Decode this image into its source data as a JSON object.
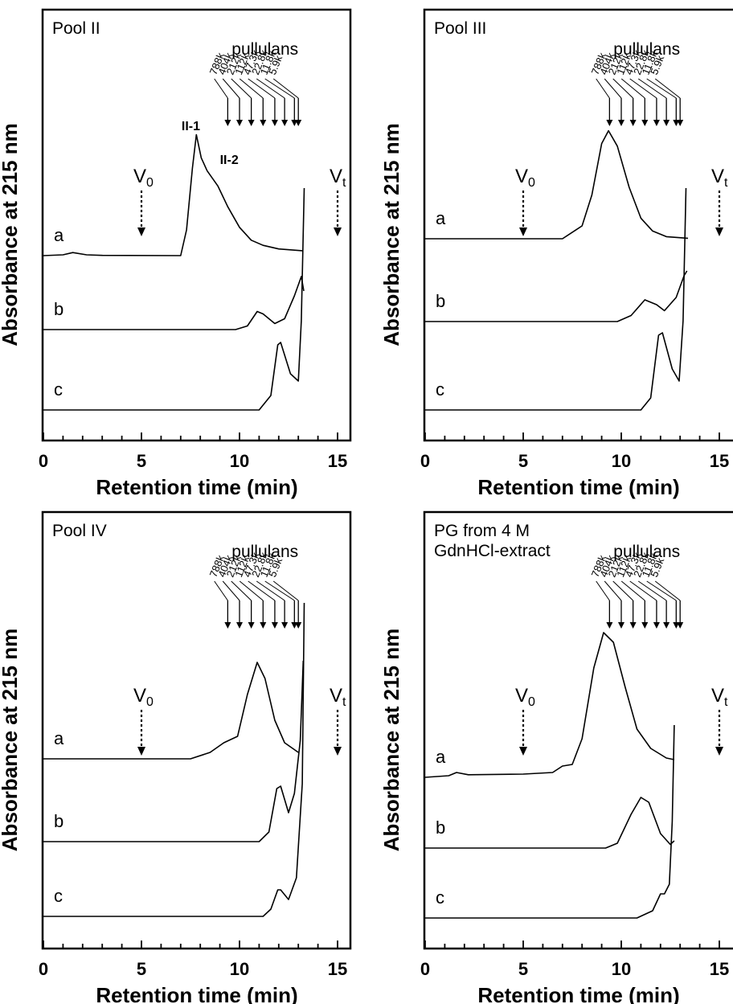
{
  "figure": {
    "x_axis_label": "Retention time (min)",
    "y_axis_label": "Absorbance at 215 nm"
  },
  "chart_data": [
    {
      "type": "line",
      "title": "Pool II",
      "xlabel": "Retention time (min)",
      "ylabel": "Absorbance at 215 nm",
      "xlim": [
        0,
        16
      ],
      "x_ticks": [
        0,
        5,
        10,
        15
      ],
      "standards_label": "pullulans",
      "standards": [
        {
          "label": "788k",
          "x": 9.4
        },
        {
          "label": "404k",
          "x": 10.0
        },
        {
          "label": "212k",
          "x": 10.6
        },
        {
          "label": "112k",
          "x": 11.2
        },
        {
          "label": "47.3k",
          "x": 11.8
        },
        {
          "label": "22.8k",
          "x": 12.3
        },
        {
          "label": "11.8k",
          "x": 12.8
        },
        {
          "label": "5.9k",
          "x": 13.0
        }
      ],
      "markers": [
        {
          "label": "V",
          "sub": "0",
          "x": 5.0
        },
        {
          "label": "V",
          "sub": "t",
          "x": 15.0
        }
      ],
      "peak_labels": [
        {
          "text": "II-1",
          "x": 7.7
        },
        {
          "text": "II-2",
          "x": 9.0
        }
      ],
      "series": [
        {
          "name": "a",
          "points": [
            [
              0,
              0
            ],
            [
              1.0,
              0.3
            ],
            [
              1.5,
              1.2
            ],
            [
              2.2,
              0.3
            ],
            [
              3,
              0.1
            ],
            [
              7.0,
              0.0
            ],
            [
              7.3,
              10
            ],
            [
              7.6,
              34
            ],
            [
              7.8,
              47
            ],
            [
              8.05,
              38
            ],
            [
              8.35,
              33
            ],
            [
              8.9,
              27
            ],
            [
              9.4,
              19
            ],
            [
              10.0,
              11
            ],
            [
              10.6,
              6
            ],
            [
              11.2,
              4
            ],
            [
              12.0,
              2.6
            ],
            [
              13.2,
              1.9
            ]
          ]
        },
        {
          "name": "b",
          "points": [
            [
              0,
              0
            ],
            [
              9.8,
              0.0
            ],
            [
              10.4,
              1.5
            ],
            [
              10.9,
              7.5
            ],
            [
              11.2,
              6.5
            ],
            [
              11.8,
              2.5
            ],
            [
              12.3,
              4.5
            ],
            [
              12.8,
              14
            ],
            [
              13.15,
              22
            ],
            [
              13.28,
              16
            ]
          ]
        },
        {
          "name": "c",
          "points": [
            [
              0,
              0
            ],
            [
              11.0,
              0.0
            ],
            [
              11.6,
              6
            ],
            [
              11.95,
              27
            ],
            [
              12.1,
              28
            ],
            [
              12.6,
              15
            ],
            [
              13.0,
              12
            ],
            [
              13.15,
              37
            ],
            [
              13.3,
              92
            ]
          ]
        }
      ]
    },
    {
      "type": "line",
      "title": "Pool III",
      "xlabel": "Retention time (min)",
      "ylabel": "Absorbance at 215 nm",
      "xlim": [
        0,
        16
      ],
      "x_ticks": [
        0,
        5,
        10,
        15
      ],
      "standards_label": "pullulans",
      "standards": [
        {
          "label": "788k",
          "x": 9.4
        },
        {
          "label": "404k",
          "x": 10.0
        },
        {
          "label": "212k",
          "x": 10.6
        },
        {
          "label": "112k",
          "x": 11.2
        },
        {
          "label": "47.3k",
          "x": 11.8
        },
        {
          "label": "22.8k",
          "x": 12.3
        },
        {
          "label": "11.8k",
          "x": 12.8
        },
        {
          "label": "5.9k",
          "x": 13.0
        }
      ],
      "markers": [
        {
          "label": "V",
          "sub": "0",
          "x": 5.0
        },
        {
          "label": "V",
          "sub": "t",
          "x": 15.0
        }
      ],
      "peak_labels": [],
      "series": [
        {
          "name": "a",
          "points": [
            [
              0,
              0
            ],
            [
              7.0,
              0.0
            ],
            [
              7.6,
              3
            ],
            [
              8.0,
              5
            ],
            [
              8.5,
              17
            ],
            [
              9.0,
              37
            ],
            [
              9.35,
              42
            ],
            [
              9.8,
              36
            ],
            [
              10.4,
              20
            ],
            [
              11.0,
              8
            ],
            [
              11.6,
              3
            ],
            [
              12.3,
              0.8
            ],
            [
              13.4,
              0.2
            ]
          ]
        },
        {
          "name": "b",
          "points": [
            [
              0,
              0
            ],
            [
              9.8,
              0.0
            ],
            [
              10.5,
              2.5
            ],
            [
              11.2,
              9
            ],
            [
              11.8,
              7
            ],
            [
              12.2,
              4.5
            ],
            [
              12.8,
              10
            ],
            [
              13.2,
              19
            ],
            [
              13.35,
              21
            ]
          ]
        },
        {
          "name": "c",
          "points": [
            [
              0,
              0
            ],
            [
              11.0,
              0.0
            ],
            [
              11.5,
              5
            ],
            [
              11.9,
              31
            ],
            [
              12.1,
              32
            ],
            [
              12.6,
              17
            ],
            [
              12.95,
              12
            ],
            [
              13.15,
              37
            ],
            [
              13.3,
              92
            ]
          ]
        }
      ]
    },
    {
      "type": "line",
      "title": "Pool IV",
      "xlabel": "Retention time (min)",
      "ylabel": "Absorbance at 215 nm",
      "xlim": [
        0,
        16
      ],
      "x_ticks": [
        0,
        5,
        10,
        15
      ],
      "standards_label": "pullulans",
      "standards": [
        {
          "label": "788k",
          "x": 9.4
        },
        {
          "label": "404k",
          "x": 10.0
        },
        {
          "label": "212k",
          "x": 10.6
        },
        {
          "label": "112k",
          "x": 11.2
        },
        {
          "label": "47.3k",
          "x": 11.8
        },
        {
          "label": "22.8k",
          "x": 12.3
        },
        {
          "label": "11.8k",
          "x": 12.8
        },
        {
          "label": "5.9k",
          "x": 13.0
        }
      ],
      "markers": [
        {
          "label": "V",
          "sub": "0",
          "x": 5.0
        },
        {
          "label": "V",
          "sub": "t",
          "x": 15.0
        }
      ],
      "peak_labels": [],
      "series": [
        {
          "name": "a",
          "points": [
            [
              0,
              0
            ],
            [
              7.5,
              0.0
            ],
            [
              8.5,
              2
            ],
            [
              9.2,
              5
            ],
            [
              9.9,
              7
            ],
            [
              10.4,
              20
            ],
            [
              10.9,
              30
            ],
            [
              11.3,
              25
            ],
            [
              11.8,
              12
            ],
            [
              12.3,
              5
            ],
            [
              13.0,
              2
            ]
          ]
        },
        {
          "name": "b",
          "points": [
            [
              0,
              0
            ],
            [
              11.0,
              0.0
            ],
            [
              11.5,
              4
            ],
            [
              11.9,
              22
            ],
            [
              12.1,
              23
            ],
            [
              12.5,
              12
            ],
            [
              12.8,
              20
            ],
            [
              13.1,
              42
            ],
            [
              13.25,
              75
            ]
          ]
        },
        {
          "name": "c",
          "points": [
            [
              0,
              0
            ],
            [
              11.2,
              0.0
            ],
            [
              11.6,
              3
            ],
            [
              11.95,
              11
            ],
            [
              12.1,
              11
            ],
            [
              12.5,
              7
            ],
            [
              12.9,
              16
            ],
            [
              13.2,
              55
            ],
            [
              13.3,
              130
            ]
          ]
        }
      ]
    },
    {
      "type": "line",
      "title": "PG from 4 M\nGdnHCl-extract",
      "xlabel": "Retention time (min)",
      "ylabel": "Absorbance at 215 nm",
      "xlim": [
        0,
        16
      ],
      "x_ticks": [
        0,
        5,
        10,
        15
      ],
      "standards_label": "pullulans",
      "standards": [
        {
          "label": "788k",
          "x": 9.4
        },
        {
          "label": "404k",
          "x": 10.0
        },
        {
          "label": "212k",
          "x": 10.6
        },
        {
          "label": "112k",
          "x": 11.2
        },
        {
          "label": "47.3k",
          "x": 11.8
        },
        {
          "label": "22.8k",
          "x": 12.3
        },
        {
          "label": "11.8k",
          "x": 12.8
        },
        {
          "label": "5.9k",
          "x": 13.0
        }
      ],
      "markers": [
        {
          "label": "V",
          "sub": "0",
          "x": 5.0
        },
        {
          "label": "V",
          "sub": "t",
          "x": 15.0
        }
      ],
      "peak_labels": [],
      "series": [
        {
          "name": "a",
          "points": [
            [
              0,
              0
            ],
            [
              1.2,
              0.5
            ],
            [
              1.6,
              1.5
            ],
            [
              2.2,
              0.8
            ],
            [
              5.0,
              1.0
            ],
            [
              6.5,
              1.5
            ],
            [
              7.0,
              3.5
            ],
            [
              7.5,
              4
            ],
            [
              8.0,
              12
            ],
            [
              8.6,
              34
            ],
            [
              9.1,
              45
            ],
            [
              9.6,
              42
            ],
            [
              10.2,
              28
            ],
            [
              10.8,
              15
            ],
            [
              11.5,
              9
            ],
            [
              12.3,
              6
            ],
            [
              12.7,
              5.5
            ]
          ]
        },
        {
          "name": "b",
          "points": [
            [
              0,
              0
            ],
            [
              9.2,
              0.0
            ],
            [
              9.8,
              2
            ],
            [
              10.5,
              14
            ],
            [
              11.0,
              21
            ],
            [
              11.4,
              19
            ],
            [
              12.0,
              6
            ],
            [
              12.5,
              1.5
            ],
            [
              12.7,
              3
            ]
          ]
        },
        {
          "name": "c",
          "points": [
            [
              0,
              0
            ],
            [
              10.8,
              0.0
            ],
            [
              11.6,
              3
            ],
            [
              12.0,
              10
            ],
            [
              12.2,
              10
            ],
            [
              12.45,
              14
            ],
            [
              12.6,
              40
            ],
            [
              12.7,
              80
            ]
          ]
        }
      ]
    }
  ]
}
